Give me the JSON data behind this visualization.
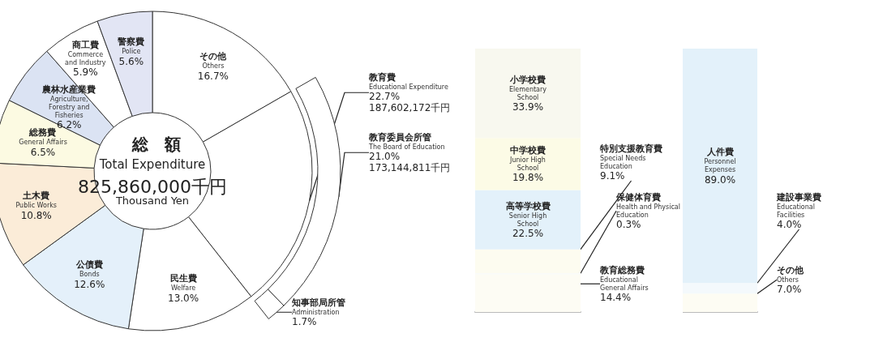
{
  "chart_data": [
    {
      "type": "donut",
      "title": "総　額",
      "annotations": [
        "Total Expenditure",
        "825,860,000千円",
        "Thousand Yen"
      ],
      "categories": [
        "その他\nOthers",
        "教育費\nEducational Expenditure",
        "民生費\nWelfare",
        "公債費\nBonds",
        "土木費\nPublic Works",
        "総務費\nGeneral Affairs",
        "農林水産業費\nAgriculture,\nForestry and\nFisheries",
        "商工費\nCommerce\nand Industry",
        "警察費\nPolice"
      ],
      "values": [
        16.7,
        22.7,
        13.0,
        12.6,
        10.8,
        6.5,
        6.2,
        5.9,
        5.6
      ],
      "value_labels": [
        "16.7%",
        "22.7%\n187,602,172千円",
        "13.0%",
        "12.6%",
        "10.8%",
        "6.5%",
        "6.2%",
        "5.9%",
        "5.6%"
      ],
      "colors": [
        "#ffffff",
        "#ffffff",
        "#ffffff",
        "#e4f0fa",
        "#fbecd8",
        "#fcfae2",
        "#dbe3f3",
        "#ffffff",
        "#e2e5f4"
      ]
    },
    {
      "type": "donut",
      "categories": [
        "教育委員会所管\nThe Board of Education",
        "知事部局所管\nAdministration"
      ],
      "values": [
        21.0,
        1.7
      ],
      "value_labels": [
        "21.0%\n173,144,811千円",
        "1.7%"
      ],
      "colors": [
        "#ffffff",
        "#ffffff"
      ]
    },
    {
      "type": "bar",
      "stacked": true,
      "categories": [
        null
      ],
      "tick_labels": false,
      "series": [
        {
          "name": "教育総務費\nEducational\nGeneral Affairs",
          "color": "#fdfcf4",
          "values": [
            14.4
          ],
          "value_labels": [
            "14.4%"
          ]
        },
        {
          "name": "保健体育費\nHealth and Physical\nEducation",
          "color": "#f6fafc",
          "values": [
            0.3
          ],
          "value_labels": [
            "0.3%"
          ]
        },
        {
          "name": "特別支援教育費\nSpecial Needs\nEducation",
          "color": "#fdfcf0",
          "values": [
            9.1
          ],
          "value_labels": [
            "9.1%"
          ]
        },
        {
          "name": "高等学校費\nSenior High\nSchool",
          "color": "#e3f1fa",
          "values": [
            22.5
          ],
          "value_labels": [
            "22.5%"
          ]
        },
        {
          "name": "中学校費\nJunior High\nSchool",
          "color": "#fcfbe6",
          "values": [
            19.8
          ],
          "value_labels": [
            "19.8%"
          ]
        },
        {
          "name": "小学校費\nElementary\nSchool",
          "color": "#f8f8ef",
          "values": [
            33.9
          ],
          "value_labels": [
            "33.9%"
          ]
        }
      ]
    },
    {
      "type": "bar",
      "stacked": true,
      "categories": [
        null
      ],
      "tick_labels": false,
      "series": [
        {
          "name": "その他\nOthers",
          "color": "#fdfcf3",
          "values": [
            7.0
          ],
          "value_labels": [
            "7.0%"
          ]
        },
        {
          "name": "建設事業費\nEducational\nFacilities",
          "color": "#f4f9fc",
          "values": [
            4.0
          ],
          "value_labels": [
            "4.0%"
          ]
        },
        {
          "name": "人件費\nPersonnel\nExpenses",
          "color": "#e3f1fa",
          "values": [
            89.0
          ],
          "value_labels": [
            "89.0%"
          ]
        }
      ]
    }
  ]
}
